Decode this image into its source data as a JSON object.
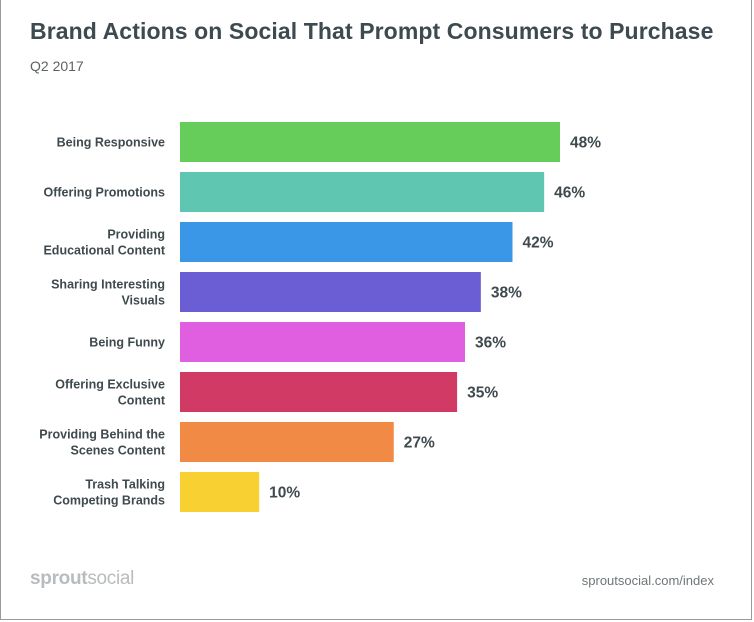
{
  "header": {
    "title": "Brand Actions on Social That Prompt Consumers to Purchase",
    "subtitle": "Q2 2017"
  },
  "footer": {
    "brand_bold": "sprout",
    "brand_light": "social",
    "source": "sproutsocial.com/index"
  },
  "chart_data": {
    "type": "bar",
    "orientation": "horizontal",
    "title": "Brand Actions on Social That Prompt Consumers to Purchase",
    "subtitle": "Q2 2017",
    "categories": [
      [
        "Being Responsive"
      ],
      [
        "Offering Promotions"
      ],
      [
        "Providing",
        "Educational Content"
      ],
      [
        "Sharing Interesting",
        "Visuals"
      ],
      [
        "Being Funny"
      ],
      [
        "Offering Exclusive",
        "Content"
      ],
      [
        "Providing Behind the",
        "Scenes Content"
      ],
      [
        "Trash Talking",
        "Competing Brands"
      ]
    ],
    "values": [
      48,
      46,
      42,
      38,
      36,
      35,
      27,
      10
    ],
    "value_labels": [
      "48%",
      "46%",
      "42%",
      "38%",
      "36%",
      "35%",
      "27%",
      "10%"
    ],
    "colors": [
      "#66cc5a",
      "#5fc6b2",
      "#3a96e6",
      "#6b5dd3",
      "#df5fe0",
      "#d03a64",
      "#f08a44",
      "#f9d032"
    ],
    "xlim": [
      0,
      48
    ],
    "grid": false,
    "legend": "none"
  }
}
